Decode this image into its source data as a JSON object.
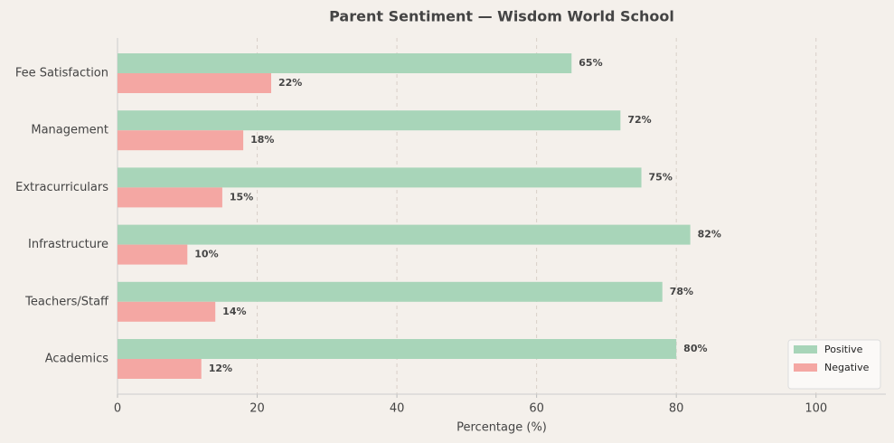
{
  "chart_data": {
    "type": "barh",
    "title": "Parent Sentiment — Wisdom World School",
    "xlabel": "Percentage (%)",
    "categories": [
      "Academics",
      "Teachers/Staff",
      "Infrastructure",
      "Extracurriculars",
      "Management",
      "Fee Satisfaction"
    ],
    "series": [
      {
        "name": "Positive",
        "color": "#a8d5b9",
        "values": [
          80,
          78,
          82,
          75,
          72,
          65
        ],
        "value_labels": [
          "80%",
          "78%",
          "82%",
          "75%",
          "72%",
          "65%"
        ]
      },
      {
        "name": "Negative",
        "color": "#f4a7a3",
        "values": [
          12,
          14,
          10,
          15,
          18,
          22
        ],
        "value_labels": [
          "12%",
          "14%",
          "10%",
          "15%",
          "18%",
          "22%"
        ]
      }
    ],
    "xlim": [
      0,
      110
    ],
    "xticks": [
      0,
      20,
      40,
      60,
      80,
      100
    ],
    "grid": true,
    "legend": "lower right"
  }
}
